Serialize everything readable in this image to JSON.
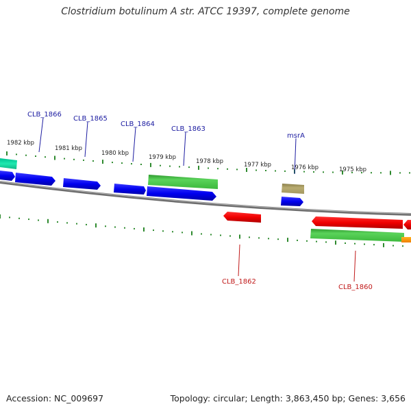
{
  "title": "Clostridium botulinum A str. ATCC 19397, complete genome",
  "footer": {
    "accession": "Accession: NC_009697",
    "summary": "Topology: circular; Length: 3,863,450 bp; Genes: 3,656"
  },
  "colors": {
    "forward_label": "#1a1aa0",
    "reverse_label": "#c01818",
    "tick": "#2e8a2e",
    "backbone": "#777777"
  },
  "ticks": [
    {
      "label": "1982 kbp"
    },
    {
      "label": "1981 kbp"
    },
    {
      "label": "1980 kbp"
    },
    {
      "label": "1979 kbp"
    },
    {
      "label": "1978 kbp"
    },
    {
      "label": "1977 kbp"
    },
    {
      "label": "1976 kbp"
    },
    {
      "label": "1975 kbp"
    }
  ],
  "gene_labels": [
    {
      "name": "CLB_1866",
      "strand": "forward"
    },
    {
      "name": "CLB_1865",
      "strand": "forward"
    },
    {
      "name": "CLB_1864",
      "strand": "forward"
    },
    {
      "name": "CLB_1863",
      "strand": "forward"
    },
    {
      "name": "msrA",
      "strand": "forward"
    },
    {
      "name": "CLB_1862",
      "strand": "reverse"
    },
    {
      "name": "CLB_1860",
      "strand": "reverse"
    }
  ]
}
